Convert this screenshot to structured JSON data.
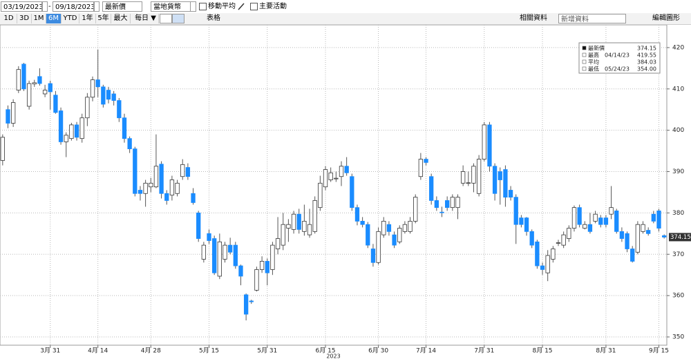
{
  "toolbar": {
    "start_date": "03/19/2023",
    "end_date": "09/18/2023",
    "price_field": "最新價",
    "currency": "當地貨幣",
    "moving_average": "移動平均",
    "key_events": "主要活動",
    "ranges": [
      "1D",
      "3D",
      "1M",
      "6M",
      "YTD",
      "1年",
      "5年",
      "最大"
    ],
    "selected_range": "6M",
    "frequency": "每日 ▼",
    "table": "表格",
    "related": "相關資料",
    "add_data": "新增資料",
    "edit_chart": "編輯圖形"
  },
  "chart_data": {
    "type": "candlestick",
    "x": [
      "2023-03-20",
      "2023-03-21",
      "2023-03-22",
      "2023-03-23",
      "2023-03-24",
      "2023-03-27",
      "2023-03-28",
      "2023-03-29",
      "2023-03-30",
      "2023-03-31",
      "2023-04-03",
      "2023-04-04",
      "2023-04-05",
      "2023-04-06",
      "2023-04-10",
      "2023-04-11",
      "2023-04-12",
      "2023-04-13",
      "2023-04-14",
      "2023-04-17",
      "2023-04-18",
      "2023-04-19",
      "2023-04-20",
      "2023-04-21",
      "2023-04-24",
      "2023-04-25",
      "2023-04-26",
      "2023-04-27",
      "2023-04-28",
      "2023-05-01",
      "2023-05-02",
      "2023-05-03",
      "2023-05-04",
      "2023-05-05",
      "2023-05-08",
      "2023-05-09",
      "2023-05-10",
      "2023-05-11",
      "2023-05-12",
      "2023-05-15",
      "2023-05-16",
      "2023-05-17",
      "2023-05-18",
      "2023-05-19",
      "2023-05-22",
      "2023-05-23",
      "2023-05-24",
      "2023-05-25",
      "2023-05-26",
      "2023-05-30",
      "2023-05-31",
      "2023-06-01",
      "2023-06-02",
      "2023-06-05",
      "2023-06-06",
      "2023-06-07",
      "2023-06-08",
      "2023-06-09",
      "2023-06-12",
      "2023-06-13",
      "2023-06-14",
      "2023-06-15",
      "2023-06-16",
      "2023-06-20",
      "2023-06-21",
      "2023-06-22",
      "2023-06-23",
      "2023-06-26",
      "2023-06-27",
      "2023-06-28",
      "2023-06-29",
      "2023-06-30",
      "2023-07-03",
      "2023-07-05",
      "2023-07-06",
      "2023-07-07",
      "2023-07-10",
      "2023-07-11",
      "2023-07-12",
      "2023-07-13",
      "2023-07-14",
      "2023-07-17",
      "2023-07-18",
      "2023-07-19",
      "2023-07-20",
      "2023-07-21",
      "2023-07-24",
      "2023-07-25",
      "2023-07-26",
      "2023-07-27",
      "2023-07-28",
      "2023-07-31",
      "2023-08-01",
      "2023-08-02",
      "2023-08-03",
      "2023-08-04",
      "2023-08-07",
      "2023-08-08",
      "2023-08-09",
      "2023-08-10",
      "2023-08-11",
      "2023-08-14",
      "2023-08-15",
      "2023-08-16",
      "2023-08-17",
      "2023-08-18",
      "2023-08-21",
      "2023-08-22",
      "2023-08-23",
      "2023-08-24",
      "2023-08-25",
      "2023-08-28",
      "2023-08-29",
      "2023-08-30",
      "2023-08-31",
      "2023-09-01",
      "2023-09-05",
      "2023-09-06",
      "2023-09-07",
      "2023-09-08",
      "2023-09-11",
      "2023-09-12",
      "2023-09-13",
      "2023-09-14",
      "2023-09-15",
      "2023-09-18"
    ],
    "open": [
      392.7,
      405,
      401.7,
      409.7,
      416,
      405.8,
      411.2,
      413,
      408.8,
      411.3,
      408.5,
      404.7,
      397.2,
      398,
      401.3,
      398,
      403,
      408,
      412.2,
      410.5,
      409.7,
      408.8,
      407.2,
      403,
      398,
      395.5,
      385.5,
      384.7,
      386.3,
      386.3,
      391.8,
      384.7,
      384.3,
      384.7,
      388.8,
      391,
      384.7,
      380,
      368.8,
      375,
      373.8,
      364.7,
      368.8,
      372.2,
      372.2,
      367.2,
      360.2,
      358.7,
      361.3,
      366.3,
      368.3,
      366.3,
      371.3,
      372.2,
      376.3,
      376,
      379.7,
      375.5,
      374.7,
      375.5,
      381.3,
      386.3,
      388,
      388.3,
      388.8,
      391.3,
      388.8,
      381.3,
      378,
      377.2,
      371.3,
      368,
      374.7,
      377.2,
      374.7,
      373,
      375.5,
      375.5,
      378,
      388.8,
      393,
      388.8,
      383,
      380.2,
      383,
      381.3,
      381.3,
      387.2,
      387.2,
      387.2,
      384.7,
      393,
      401.3,
      391.3,
      390,
      390.5,
      385.5,
      383.8,
      378.8,
      378.8,
      375.5,
      373,
      367.2,
      365.5,
      368.8,
      372.7,
      372.2,
      373.8,
      376.3,
      381.3,
      376.3,
      377.2,
      378,
      378.8,
      378.8,
      379.7,
      380.5,
      375.5,
      375,
      371.3,
      370.5,
      375.5,
      375.8,
      379.7,
      380.5,
      374.5
    ],
    "high": [
      399,
      406,
      407.5,
      415.5,
      416.3,
      412,
      412.2,
      415,
      411,
      412,
      409.5,
      405.5,
      399.5,
      401.8,
      402,
      404,
      409,
      413,
      419.55,
      411,
      410.5,
      409.5,
      407.8,
      404,
      398.5,
      396,
      386.5,
      388,
      388.5,
      399,
      392.5,
      385.5,
      389,
      388,
      393,
      392,
      386,
      380.5,
      373,
      376,
      374.5,
      375,
      373,
      374,
      373,
      367.5,
      360.5,
      359,
      367,
      369.5,
      369,
      373,
      379,
      380,
      378.5,
      380.5,
      381,
      382,
      381,
      384,
      389,
      391.3,
      391,
      390,
      392.5,
      393.5,
      389.5,
      382,
      379,
      377.8,
      372.5,
      376.5,
      379,
      378,
      375.5,
      377,
      378,
      379,
      384.5,
      394.5,
      393.5,
      389.5,
      384,
      381.5,
      384,
      384.5,
      384.5,
      391.5,
      390,
      392,
      394,
      402,
      402,
      392,
      391,
      391.5,
      386.5,
      384.5,
      379.5,
      379,
      376,
      373.5,
      368,
      371,
      372,
      373.5,
      375.5,
      377,
      381.8,
      382,
      378,
      380,
      380.5,
      379.5,
      379.5,
      386.5,
      381,
      376.5,
      375.5,
      372,
      378,
      378,
      376.5,
      380.5,
      381,
      374.8
    ],
    "low": [
      391.5,
      400.5,
      400.8,
      409,
      409.5,
      405,
      410.5,
      410.8,
      408,
      405,
      404,
      396.5,
      393.5,
      397.5,
      397.5,
      397,
      401,
      407,
      408,
      405.5,
      406.5,
      406,
      402,
      397,
      394.5,
      384,
      383,
      381.5,
      385,
      386,
      383.5,
      382,
      383,
      384,
      388,
      388,
      382,
      373,
      368,
      372.5,
      365,
      364,
      368,
      370,
      366.5,
      362.5,
      354,
      358,
      361,
      365.5,
      362.5,
      365,
      370,
      371,
      373,
      375,
      375,
      374.5,
      374,
      375,
      380.5,
      385.5,
      387.5,
      387.5,
      386.5,
      389,
      380.5,
      377,
      376.5,
      371.5,
      367,
      367.5,
      374,
      374.5,
      371.5,
      372.5,
      375,
      375,
      377.5,
      388,
      391.5,
      382,
      380.5,
      379,
      380.5,
      380.5,
      378.5,
      386.5,
      386.5,
      385,
      384,
      392.5,
      390,
      383,
      382,
      381.5,
      383,
      372.5,
      376.5,
      374.5,
      371.5,
      366.5,
      365,
      363.5,
      368,
      372,
      371.5,
      373,
      375.5,
      376.5,
      376,
      375,
      377.5,
      376.5,
      376.5,
      378.5,
      375,
      373,
      370.5,
      368,
      370,
      375,
      374.5,
      377.5,
      375.5,
      373.8
    ],
    "close": [
      398.3,
      401.7,
      406.7,
      414.7,
      410,
      411.3,
      411.5,
      411.3,
      409.7,
      409.3,
      404.3,
      397.2,
      398.8,
      401.3,
      398.3,
      403,
      408,
      412.2,
      410.5,
      406.3,
      407.5,
      407.2,
      403,
      398,
      395.5,
      384.7,
      384.7,
      387.2,
      387.2,
      391.3,
      384.7,
      383,
      388,
      387.2,
      391.7,
      388.8,
      382.5,
      373.8,
      372.2,
      373.3,
      365.5,
      373,
      372.2,
      370.5,
      367.2,
      364.7,
      355.5,
      358.5,
      366.3,
      368.3,
      365.5,
      372.2,
      373.8,
      377.2,
      377.2,
      379.7,
      376,
      378,
      377.2,
      383,
      387.2,
      390.5,
      389.7,
      388.4,
      391.3,
      389.7,
      381.3,
      378,
      377.2,
      372.2,
      368,
      375.5,
      378,
      375.5,
      372.2,
      376.3,
      377.2,
      378,
      383.8,
      393,
      392.2,
      383,
      381.3,
      380.1,
      381.3,
      383.8,
      383.8,
      390,
      387.3,
      391.3,
      393,
      401.3,
      391.3,
      384.7,
      388,
      383.8,
      383.8,
      377.2,
      377.2,
      375.5,
      372.2,
      367.2,
      366.3,
      369.7,
      371.3,
      372.8,
      374.7,
      376.3,
      381.3,
      377.2,
      377.2,
      375.5,
      379.7,
      377.2,
      377.2,
      381.3,
      375.5,
      373.8,
      371.3,
      368.3,
      377.2,
      377.2,
      375,
      378,
      376.3,
      374.15
    ],
    "up_color": "#ffffff",
    "down_color": "#1a8cff",
    "xticks": [
      {
        "value": "2023-03-31",
        "label": "3月 31"
      },
      {
        "value": "2023-04-14",
        "label": "4月 14"
      },
      {
        "value": "2023-04-28",
        "label": "4月 28"
      },
      {
        "value": "2023-05-15",
        "label": "5月 15"
      },
      {
        "value": "2023-05-31",
        "label": "5月 31"
      },
      {
        "value": "2023-06-15",
        "label": "6月 15"
      },
      {
        "value": "2023-06-30",
        "label": "6月 30"
      },
      {
        "value": "2023-07-14",
        "label": "7月 14"
      },
      {
        "value": "2023-07-31",
        "label": "7月 31"
      },
      {
        "value": "2023-08-15",
        "label": "8月 15"
      },
      {
        "value": "2023-08-31",
        "label": "8月 31"
      },
      {
        "value": "2023-09-15",
        "label": "9月 15"
      }
    ],
    "x_axis_label": "2023",
    "ylim": [
      348,
      425.5
    ],
    "yticks": [
      350,
      360,
      370,
      380,
      390,
      400,
      410,
      420
    ],
    "grid": true,
    "stats": [
      {
        "name": "最新價",
        "value": 374.15
      },
      {
        "name": "最高",
        "date": "04/14/23",
        "value": 419.55
      },
      {
        "name": "平均",
        "value": 384.03
      },
      {
        "name": "最低",
        "date": "05/24/23",
        "value": 354,
        "value_label": "354.00"
      }
    ]
  }
}
